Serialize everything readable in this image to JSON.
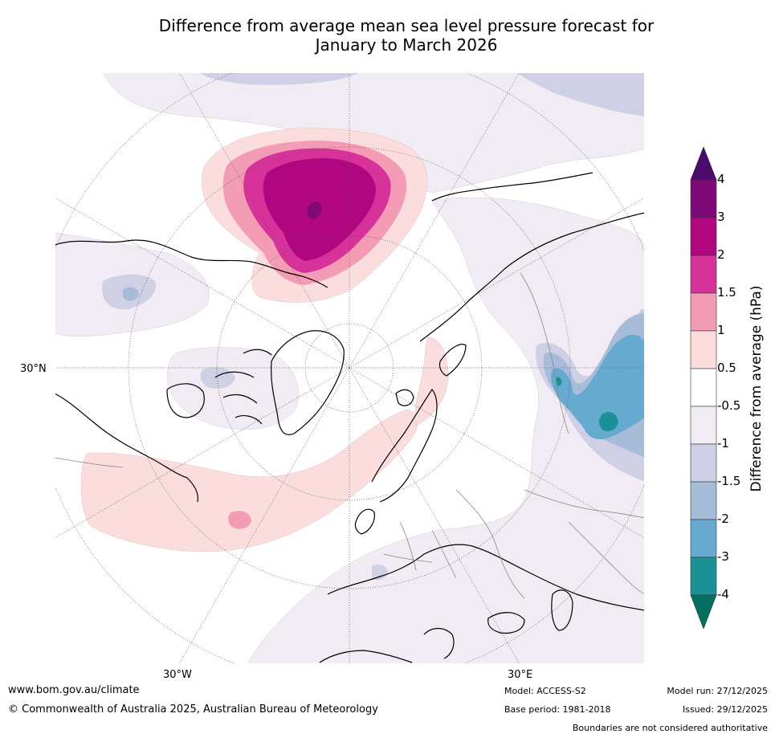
{
  "title_line1": "Difference from average mean sea level pressure forecast for",
  "title_line2": "January to March 2026",
  "map": {
    "lat_label": "30°N",
    "lon_label_left": "30°W",
    "lon_label_right": "30°E"
  },
  "colorbar": {
    "title": "Difference from average (hPa)",
    "levels": [
      "4",
      "3",
      "2",
      "1.5",
      "1",
      "0.5",
      "-0.5",
      "-1",
      "-1.5",
      "-2",
      "-3",
      "-4"
    ],
    "colors": [
      "#4a0a6e",
      "#7e0a77",
      "#b00780",
      "#d6329a",
      "#f49cb6",
      "#fcdddd",
      "#ffffff",
      "#f1ebf4",
      "#cfd0e5",
      "#a7bcd8",
      "#66aacf",
      "#1b9196",
      "#05705f"
    ]
  },
  "footer": {
    "website": "www.bom.gov.au/climate",
    "copyright": "© Commonwealth of Australia 2025, Australian Bureau of Meteorology",
    "model": "Model: ACCESS-S2",
    "base_period": "Base period: 1981-2018",
    "model_run": "Model run: 27/12/2025",
    "issued": "Issued: 29/12/2025",
    "disclaimer": "Boundaries are not considered authoritative"
  }
}
